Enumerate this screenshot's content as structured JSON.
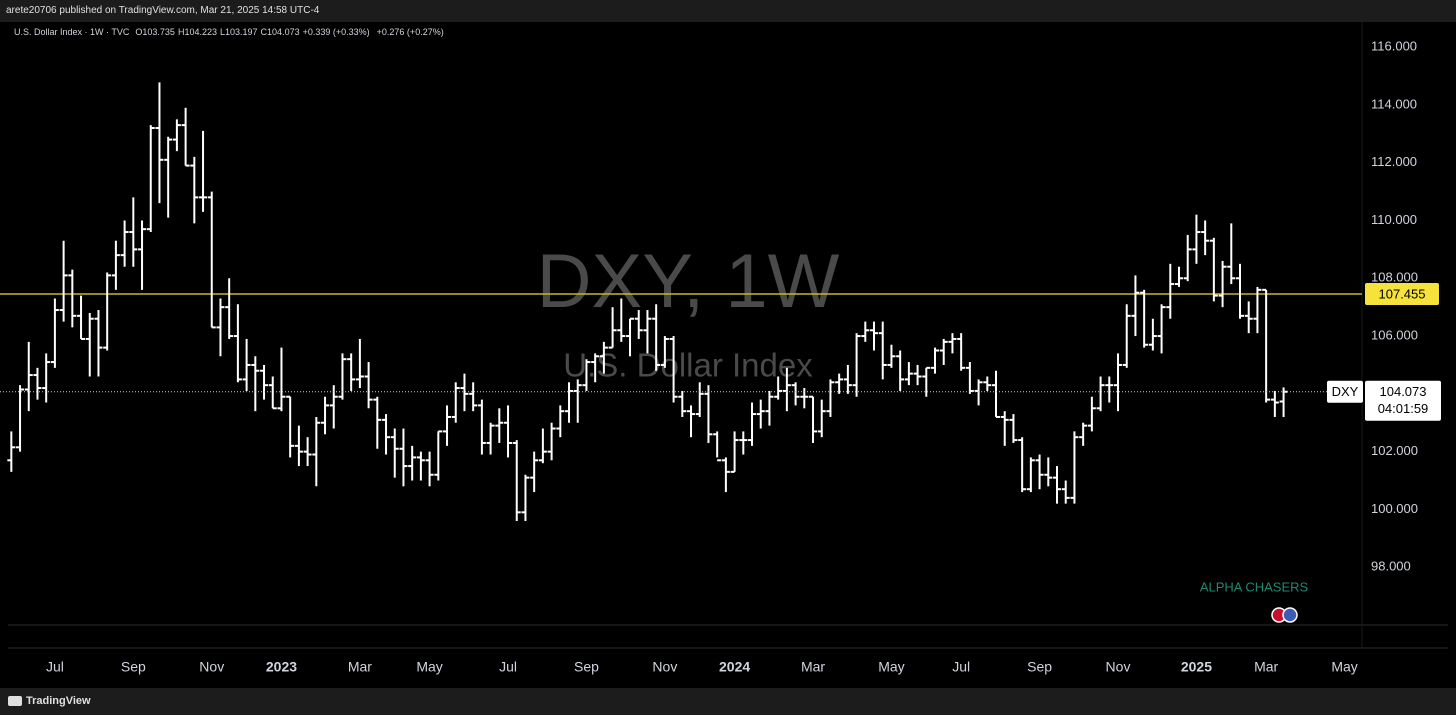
{
  "header": {
    "published": "arete20706 published on TradingView.com, Mar 21, 2025 14:58 UTC-4"
  },
  "footer": {
    "brand": "TradingView"
  },
  "chart_data": {
    "type": "ohlc",
    "watermark": {
      "title": "DXY, 1W",
      "subtitle": "U.S. Dollar Index"
    },
    "legend": {
      "symbol": "U.S. Dollar Index · 1W · TVC",
      "open_label": "O",
      "high_label": "H",
      "low_label": "L",
      "close_label": "C",
      "change": "+0.339 (+0.33%)",
      "extended_change": "+0.276 (+0.27%)"
    },
    "price_label": {
      "symbol": "DXY",
      "countdown": "04:01:59"
    },
    "hline": {
      "value": 107.455,
      "color": "#c9b52a",
      "label": "107.455"
    },
    "annotation": "ALPHA CHASERS",
    "ylim": [
      96,
      116.8
    ],
    "yticks": [
      {
        "value": 98,
        "label": "98.000"
      },
      {
        "value": 100,
        "label": "100.000"
      },
      {
        "value": 102,
        "label": "102.000"
      },
      {
        "value": 104,
        "label": "104.000"
      },
      {
        "value": 106,
        "label": "106.000"
      },
      {
        "value": 108,
        "label": "108.000"
      },
      {
        "value": 110,
        "label": "110.000"
      },
      {
        "value": 112,
        "label": "112.000"
      },
      {
        "value": 114,
        "label": "114.000"
      },
      {
        "value": 116,
        "label": "116.000"
      }
    ],
    "xlim": [
      -1.3,
      155
    ],
    "xticks": [
      {
        "value": 5,
        "label": "Jul"
      },
      {
        "value": 14,
        "label": "Sep"
      },
      {
        "value": 23,
        "label": "Nov"
      },
      {
        "value": 31,
        "label": "2023"
      },
      {
        "value": 40,
        "label": "Mar"
      },
      {
        "value": 48,
        "label": "May"
      },
      {
        "value": 57,
        "label": "Jul"
      },
      {
        "value": 66,
        "label": "Sep"
      },
      {
        "value": 75,
        "label": "Nov"
      },
      {
        "value": 83,
        "label": "2024"
      },
      {
        "value": 92,
        "label": "Mar"
      },
      {
        "value": 101,
        "label": "May"
      },
      {
        "value": 109,
        "label": "Jul"
      },
      {
        "value": 118,
        "label": "Sep"
      },
      {
        "value": 127,
        "label": "Nov"
      },
      {
        "value": 136,
        "label": "2025"
      },
      {
        "value": 144,
        "label": "Mar"
      },
      {
        "value": 153,
        "label": "May"
      }
    ],
    "series": [
      {
        "name": "U.S. Dollar Index",
        "color": "#ffffff",
        "values": [
          [
            101.7,
            102.7,
            101.3,
            102.15
          ],
          [
            102.15,
            104.3,
            102.0,
            104.15
          ],
          [
            104.15,
            105.8,
            103.4,
            104.65
          ],
          [
            104.65,
            104.9,
            103.8,
            104.2
          ],
          [
            104.2,
            105.4,
            103.7,
            105.1
          ],
          [
            105.1,
            107.3,
            104.9,
            106.9
          ],
          [
            106.9,
            109.3,
            106.5,
            108.1
          ],
          [
            108.1,
            108.3,
            106.3,
            106.7
          ],
          [
            106.7,
            107.4,
            105.9,
            105.9
          ],
          [
            105.9,
            106.8,
            104.6,
            106.6
          ],
          [
            106.6,
            106.9,
            104.6,
            105.6
          ],
          [
            105.6,
            108.2,
            105.5,
            108.1
          ],
          [
            108.1,
            109.3,
            107.6,
            108.8
          ],
          [
            108.8,
            110.0,
            108.4,
            109.6
          ],
          [
            109.6,
            110.8,
            108.4,
            109.0
          ],
          [
            109.0,
            110.0,
            107.6,
            109.7
          ],
          [
            109.7,
            113.3,
            109.6,
            113.2
          ],
          [
            113.2,
            114.78,
            110.6,
            112.1
          ],
          [
            112.1,
            112.9,
            110.1,
            112.8
          ],
          [
            112.8,
            113.5,
            112.4,
            113.3
          ],
          [
            113.3,
            113.9,
            111.9,
            111.9
          ],
          [
            111.9,
            112.2,
            109.9,
            110.8
          ],
          [
            110.8,
            113.1,
            110.3,
            110.8
          ],
          [
            110.8,
            111.0,
            106.3,
            106.3
          ],
          [
            106.3,
            107.3,
            105.3,
            107.0
          ],
          [
            107.0,
            108.0,
            105.9,
            106.0
          ],
          [
            106.0,
            107.1,
            104.4,
            104.5
          ],
          [
            104.5,
            105.9,
            104.1,
            105.0
          ],
          [
            105.0,
            105.3,
            103.4,
            104.8
          ],
          [
            104.8,
            105.0,
            103.8,
            104.3
          ],
          [
            104.3,
            104.6,
            103.5,
            103.5
          ],
          [
            103.5,
            105.6,
            103.4,
            103.9
          ],
          [
            103.9,
            103.9,
            101.8,
            102.2
          ],
          [
            102.2,
            102.9,
            101.5,
            102.0
          ],
          [
            102.0,
            102.5,
            101.5,
            101.9
          ],
          [
            101.9,
            103.2,
            100.8,
            103.0
          ],
          [
            103.0,
            103.9,
            102.6,
            103.6
          ],
          [
            103.6,
            104.3,
            102.8,
            103.9
          ],
          [
            103.9,
            105.4,
            103.8,
            105.2
          ],
          [
            105.2,
            105.4,
            104.1,
            104.5
          ],
          [
            104.5,
            105.9,
            104.2,
            104.6
          ],
          [
            104.6,
            105.1,
            103.5,
            103.8
          ],
          [
            103.8,
            103.9,
            102.1,
            103.1
          ],
          [
            103.1,
            103.3,
            101.9,
            102.5
          ],
          [
            102.5,
            102.8,
            101.1,
            102.1
          ],
          [
            102.1,
            102.8,
            100.8,
            101.5
          ],
          [
            101.5,
            102.2,
            101.0,
            101.8
          ],
          [
            101.8,
            102.0,
            101.0,
            101.7
          ],
          [
            101.7,
            102.0,
            100.8,
            101.2
          ],
          [
            101.2,
            102.7,
            101.0,
            102.7
          ],
          [
            102.7,
            103.6,
            102.2,
            103.2
          ],
          [
            103.2,
            104.4,
            103.0,
            104.2
          ],
          [
            104.2,
            104.7,
            103.4,
            104.0
          ],
          [
            104.0,
            104.4,
            103.4,
            103.6
          ],
          [
            103.6,
            103.8,
            101.9,
            102.3
          ],
          [
            102.3,
            103.0,
            101.9,
            102.9
          ],
          [
            102.9,
            103.5,
            102.3,
            103.0
          ],
          [
            103.0,
            103.6,
            101.8,
            102.3
          ],
          [
            102.3,
            102.4,
            99.6,
            99.9
          ],
          [
            99.9,
            101.2,
            99.6,
            101.1
          ],
          [
            101.1,
            102.0,
            100.6,
            101.7
          ],
          [
            101.7,
            102.8,
            101.6,
            102.0
          ],
          [
            102.0,
            103.0,
            101.7,
            102.8
          ],
          [
            102.8,
            103.6,
            102.5,
            103.4
          ],
          [
            103.4,
            104.4,
            103.0,
            104.1
          ],
          [
            104.1,
            104.5,
            103.0,
            104.3
          ],
          [
            104.3,
            105.2,
            104.1,
            105.1
          ],
          [
            105.1,
            105.4,
            104.4,
            105.3
          ],
          [
            105.3,
            105.8,
            104.7,
            105.6
          ],
          [
            105.6,
            107.0,
            105.6,
            106.2
          ],
          [
            106.2,
            107.3,
            105.8,
            106.0
          ],
          [
            106.0,
            106.6,
            105.3,
            106.6
          ],
          [
            106.6,
            106.9,
            105.9,
            106.2
          ],
          [
            106.2,
            106.9,
            105.4,
            106.6
          ],
          [
            106.6,
            107.1,
            104.8,
            105.0
          ],
          [
            105.0,
            106.0,
            104.9,
            105.9
          ],
          [
            105.9,
            106.0,
            103.7,
            103.9
          ],
          [
            103.9,
            104.1,
            103.2,
            103.4
          ],
          [
            103.4,
            103.6,
            102.5,
            103.3
          ],
          [
            103.3,
            104.4,
            103.2,
            104.0
          ],
          [
            104.0,
            104.3,
            102.3,
            102.6
          ],
          [
            102.6,
            102.7,
            101.8,
            101.7
          ],
          [
            101.7,
            101.8,
            100.6,
            101.3
          ],
          [
            101.3,
            102.7,
            101.3,
            102.4
          ],
          [
            102.4,
            102.7,
            101.9,
            102.4
          ],
          [
            102.4,
            103.7,
            102.2,
            103.3
          ],
          [
            103.3,
            103.8,
            102.8,
            103.4
          ],
          [
            103.4,
            104.1,
            102.9,
            103.9
          ],
          [
            103.9,
            104.6,
            103.8,
            104.1
          ],
          [
            104.1,
            104.9,
            103.4,
            104.3
          ],
          [
            104.3,
            104.4,
            103.6,
            103.9
          ],
          [
            103.9,
            104.2,
            103.5,
            103.9
          ],
          [
            103.9,
            103.9,
            102.3,
            102.7
          ],
          [
            102.7,
            103.8,
            102.5,
            103.4
          ],
          [
            103.4,
            104.5,
            103.2,
            104.4
          ],
          [
            104.4,
            104.7,
            104.0,
            104.5
          ],
          [
            104.5,
            105.0,
            104.0,
            104.3
          ],
          [
            104.3,
            106.1,
            103.9,
            106.0
          ],
          [
            106.0,
            106.5,
            105.8,
            106.2
          ],
          [
            106.2,
            106.5,
            105.5,
            106.1
          ],
          [
            106.1,
            106.5,
            104.5,
            105.0
          ],
          [
            105.0,
            105.7,
            104.9,
            105.3
          ],
          [
            105.3,
            105.5,
            104.1,
            104.5
          ],
          [
            104.5,
            105.1,
            104.3,
            104.7
          ],
          [
            104.7,
            105.0,
            104.3,
            104.6
          ],
          [
            104.6,
            104.9,
            103.9,
            104.9
          ],
          [
            104.9,
            105.6,
            104.7,
            105.5
          ],
          [
            105.5,
            105.9,
            105.0,
            105.8
          ],
          [
            105.8,
            106.1,
            105.4,
            105.9
          ],
          [
            105.9,
            106.1,
            104.8,
            104.9
          ],
          [
            104.9,
            105.1,
            104.0,
            104.1
          ],
          [
            104.1,
            104.5,
            103.6,
            104.4
          ],
          [
            104.4,
            104.6,
            104.1,
            104.3
          ],
          [
            104.3,
            104.8,
            103.2,
            103.2
          ],
          [
            103.2,
            103.4,
            102.2,
            103.1
          ],
          [
            103.1,
            103.3,
            102.3,
            102.4
          ],
          [
            102.4,
            102.5,
            100.6,
            100.7
          ],
          [
            100.7,
            101.8,
            100.6,
            101.7
          ],
          [
            101.7,
            101.9,
            100.7,
            101.2
          ],
          [
            101.2,
            101.8,
            100.8,
            101.1
          ],
          [
            101.1,
            101.5,
            100.2,
            100.7
          ],
          [
            100.7,
            101.0,
            100.2,
            100.4
          ],
          [
            100.4,
            102.7,
            100.2,
            102.5
          ],
          [
            102.5,
            103.0,
            102.2,
            102.9
          ],
          [
            102.9,
            103.9,
            102.7,
            103.5
          ],
          [
            103.5,
            104.6,
            103.4,
            104.3
          ],
          [
            104.3,
            104.6,
            103.7,
            104.3
          ],
          [
            104.3,
            105.4,
            103.4,
            105.0
          ],
          [
            105.0,
            107.1,
            104.9,
            106.7
          ],
          [
            106.7,
            108.1,
            106.0,
            107.5
          ],
          [
            107.5,
            107.6,
            105.6,
            105.7
          ],
          [
            105.7,
            106.6,
            105.5,
            106.0
          ],
          [
            106.0,
            107.1,
            105.4,
            107.0
          ],
          [
            107.0,
            108.5,
            106.6,
            107.8
          ],
          [
            107.8,
            108.4,
            107.7,
            108.0
          ],
          [
            108.0,
            109.5,
            107.9,
            109.0
          ],
          [
            109.0,
            110.2,
            108.5,
            109.6
          ],
          [
            109.6,
            110.0,
            108.8,
            109.3
          ],
          [
            109.3,
            109.4,
            107.2,
            107.4
          ],
          [
            107.4,
            108.6,
            107.0,
            108.4
          ],
          [
            108.4,
            109.9,
            107.8,
            108.0
          ],
          [
            108.0,
            108.5,
            106.6,
            106.7
          ],
          [
            106.7,
            107.2,
            106.1,
            106.6
          ],
          [
            106.6,
            107.7,
            106.1,
            107.6
          ],
          [
            107.6,
            107.6,
            103.7,
            103.8
          ],
          [
            103.8,
            104.1,
            103.2,
            103.7
          ],
          [
            103.735,
            104.223,
            103.197,
            104.073
          ]
        ]
      }
    ]
  }
}
